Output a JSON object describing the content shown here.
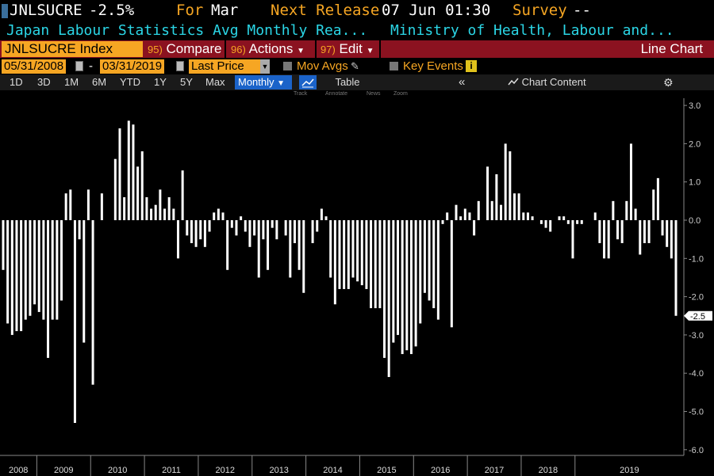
{
  "header": {
    "ticker": "JNLSUCRE",
    "change": "-2.5%",
    "for_label": "For",
    "for_value": "Mar",
    "next_release_label": "Next Release",
    "next_release_value": "07 Jun 01:30",
    "survey_label": "Survey",
    "survey_value": "--",
    "description": "Japan Labour Statistics Avg Monthly Rea...",
    "source": "Ministry of Health, Labour and..."
  },
  "menubar": {
    "index": "JNLSUCRE Index",
    "compare_num": "95)",
    "compare": "Compare",
    "actions_num": "96)",
    "actions": "Actions",
    "edit_num": "97)",
    "edit": "Edit",
    "chart_type": "Line Chart"
  },
  "controls": {
    "start_date": "05/31/2008",
    "dash": "-",
    "end_date": "03/31/2019",
    "field": "Last Price",
    "mov_avgs": "Mov Avgs",
    "key_events": "Key Events"
  },
  "periods": [
    "1D",
    "3D",
    "1M",
    "6M",
    "YTD",
    "1Y",
    "5Y",
    "Max"
  ],
  "frequency": "Monthly",
  "table_label": "Table",
  "chart_content_label": "Chart Content",
  "tools": [
    "Track",
    "Annotate",
    "News",
    "Zoom"
  ],
  "colors": {
    "accent_orange": "#f6a623",
    "menu_red": "#8b1220",
    "selected_blue": "#1b63c9",
    "cyan_text": "#2bd6e6",
    "bars": "#ffffff"
  },
  "icons": {
    "calendar": "calendar-icon",
    "pencil": "pencil-icon",
    "info": "info-icon",
    "collapse": "double-chevron-left-icon",
    "gear": "gear-icon",
    "chart_content": "chart-icon"
  },
  "chart_data": {
    "type": "bar",
    "start": "2008-05",
    "end": "2019-03",
    "ylim": [
      -6.0,
      3.3
    ],
    "yticks": [
      "3.0",
      "2.0",
      "1.0",
      "0.0",
      "-1.0",
      "-2.0",
      "-3.0",
      "-4.0",
      "-5.0",
      "-6.0"
    ],
    "x_tick_labels": [
      "2008",
      "2009",
      "2010",
      "2011",
      "2012",
      "2013",
      "2014",
      "2015",
      "2016",
      "2017",
      "2018",
      "2019"
    ],
    "last_value_label": "-2.5",
    "values": [
      -1.3,
      -2.7,
      -3.0,
      -2.9,
      -2.9,
      -2.6,
      -2.5,
      -2.2,
      -2.4,
      -2.6,
      -3.6,
      -2.6,
      -2.6,
      -2.1,
      0.7,
      0.8,
      -5.3,
      -0.5,
      -3.2,
      0.8,
      -4.3,
      0.0,
      0.7,
      0.0,
      0.0,
      1.6,
      2.4,
      0.6,
      2.6,
      2.5,
      1.4,
      1.8,
      0.6,
      0.3,
      0.4,
      0.8,
      0.3,
      0.6,
      0.3,
      -1.0,
      1.3,
      -0.4,
      -0.6,
      -0.7,
      -0.5,
      -0.7,
      -0.3,
      0.2,
      0.3,
      0.2,
      -1.3,
      -0.2,
      -0.4,
      0.1,
      -0.3,
      -0.7,
      -0.4,
      -1.5,
      -0.5,
      -1.3,
      -0.2,
      -0.5,
      0.0,
      -0.4,
      -1.5,
      -0.6,
      -1.3,
      -1.9,
      0.0,
      -0.6,
      -0.3,
      0.3,
      0.1,
      -1.5,
      -2.2,
      -1.8,
      -1.8,
      -1.8,
      -1.5,
      -1.6,
      -1.7,
      -1.8,
      -2.3,
      -2.3,
      -2.3,
      -3.6,
      -4.1,
      -3.2,
      -3.0,
      -3.5,
      -3.4,
      -3.5,
      -3.3,
      -2.7,
      -1.9,
      -2.1,
      -2.3,
      -2.6,
      -0.1,
      0.2,
      -2.8,
      0.4,
      0.1,
      0.3,
      0.2,
      -0.4,
      0.5,
      0.0,
      1.4,
      0.5,
      1.2,
      0.4,
      2.0,
      1.8,
      0.7,
      0.7,
      0.2,
      0.2,
      0.1,
      0.0,
      -0.1,
      -0.2,
      -0.3,
      0.0,
      0.1,
      0.1,
      -0.1,
      -1.0,
      -0.1,
      -0.1,
      0.0,
      0.0,
      0.2,
      -0.6,
      -1.0,
      -1.0,
      0.5,
      -0.5,
      -0.6,
      0.5,
      2.0,
      0.3,
      -0.9,
      -0.6,
      -0.6,
      0.8,
      1.1,
      -0.4,
      -0.7,
      -1.0,
      -2.5
    ]
  }
}
